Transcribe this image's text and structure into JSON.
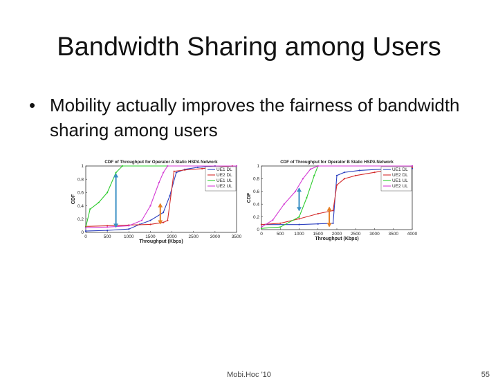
{
  "slide": {
    "title": "Bandwidth Sharing among Users",
    "bullet_symbol": "•",
    "bullet": "Mobility actually improves the fairness of bandwidth sharing among users",
    "footer_center": "Mobi.Hoc '10",
    "page_number": "55"
  },
  "chart_data": [
    {
      "type": "line",
      "title": "CDF of Throughput for Operator A Static HSPA Network",
      "xlabel": "Throughput (Kbps)",
      "ylabel": "CDF",
      "xlim": [
        0,
        3500
      ],
      "ylim": [
        0,
        1
      ],
      "x_ticks": [
        "0",
        "500",
        "1000",
        "1500",
        "2000",
        "2500",
        "3000",
        "3500"
      ],
      "y_ticks": [
        "0",
        "0.2",
        "0.4",
        "0.6",
        "0.8",
        "1"
      ],
      "legend_position": "top-right",
      "series": [
        {
          "name": "UE1 DL",
          "color": "#2b3fbf",
          "points": [
            [
              0,
              0.02
            ],
            [
              500,
              0.03
            ],
            [
              1000,
              0.05
            ],
            [
              1250,
              0.12
            ],
            [
              1500,
              0.18
            ],
            [
              1800,
              0.3
            ],
            [
              1950,
              0.55
            ],
            [
              2100,
              0.9
            ],
            [
              2300,
              0.95
            ],
            [
              2600,
              0.98
            ],
            [
              3000,
              1.0
            ]
          ]
        },
        {
          "name": "UE2 DL",
          "color": "#d42a2a",
          "points": [
            [
              0,
              0.09
            ],
            [
              500,
              0.1
            ],
            [
              1000,
              0.11
            ],
            [
              1500,
              0.12
            ],
            [
              1800,
              0.15
            ],
            [
              1900,
              0.18
            ],
            [
              2050,
              0.92
            ],
            [
              2300,
              0.94
            ],
            [
              2700,
              0.96
            ],
            [
              3000,
              0.98
            ],
            [
              3400,
              1.0
            ]
          ]
        },
        {
          "name": "UE1 UL",
          "color": "#2ecc2e",
          "points": [
            [
              0,
              0.08
            ],
            [
              100,
              0.35
            ],
            [
              300,
              0.45
            ],
            [
              500,
              0.6
            ],
            [
              700,
              0.9
            ],
            [
              850,
              1.0
            ],
            [
              3500,
              1.0
            ]
          ]
        },
        {
          "name": "UE2 UL",
          "color": "#d43ad4",
          "points": [
            [
              0,
              0.07
            ],
            [
              500,
              0.08
            ],
            [
              1000,
              0.1
            ],
            [
              1300,
              0.18
            ],
            [
              1500,
              0.4
            ],
            [
              1700,
              0.75
            ],
            [
              1800,
              0.9
            ],
            [
              1900,
              1.0
            ],
            [
              3500,
              1.0
            ]
          ]
        }
      ],
      "annotations": [
        {
          "type": "double-arrow",
          "color": "#3a8fc4",
          "x": 700,
          "y_from": 0.08,
          "y_to": 0.88
        },
        {
          "type": "double-arrow",
          "color": "#e67e22",
          "x": 1730,
          "y_from": 0.13,
          "y_to": 0.43
        }
      ]
    },
    {
      "type": "line",
      "title": "CDF of Throughput for Operator B Static HSPA Network",
      "xlabel": "Throughput (Kbps)",
      "ylabel": "CDF",
      "xlim": [
        0,
        4000
      ],
      "ylim": [
        0,
        1
      ],
      "x_ticks": [
        "0",
        "500",
        "1000",
        "1500",
        "2000",
        "2500",
        "3000",
        "3500",
        "4000"
      ],
      "y_ticks": [
        "0",
        "0.2",
        "0.4",
        "0.6",
        "0.8",
        "1"
      ],
      "legend_position": "top-right",
      "series": [
        {
          "name": "UE1 DL",
          "color": "#2b3fbf",
          "points": [
            [
              0,
              0.08
            ],
            [
              1000,
              0.08
            ],
            [
              1500,
              0.09
            ],
            [
              1900,
              0.1
            ],
            [
              2000,
              0.85
            ],
            [
              2200,
              0.9
            ],
            [
              2600,
              0.93
            ],
            [
              3200,
              0.95
            ],
            [
              4000,
              0.96
            ]
          ]
        },
        {
          "name": "UE2 DL",
          "color": "#d42a2a",
          "points": [
            [
              0,
              0.08
            ],
            [
              500,
              0.1
            ],
            [
              1000,
              0.17
            ],
            [
              1500,
              0.25
            ],
            [
              1900,
              0.3
            ],
            [
              2000,
              0.7
            ],
            [
              2200,
              0.8
            ],
            [
              2500,
              0.85
            ],
            [
              3000,
              0.9
            ],
            [
              3500,
              0.95
            ],
            [
              4000,
              0.98
            ]
          ]
        },
        {
          "name": "UE1 UL",
          "color": "#2ecc2e",
          "points": [
            [
              0,
              0.02
            ],
            [
              500,
              0.04
            ],
            [
              1000,
              0.2
            ],
            [
              1200,
              0.5
            ],
            [
              1400,
              0.85
            ],
            [
              1500,
              1.0
            ],
            [
              4000,
              1.0
            ]
          ]
        },
        {
          "name": "UE2 UL",
          "color": "#d43ad4",
          "points": [
            [
              0,
              0.04
            ],
            [
              300,
              0.15
            ],
            [
              600,
              0.4
            ],
            [
              900,
              0.6
            ],
            [
              1100,
              0.8
            ],
            [
              1300,
              0.95
            ],
            [
              1500,
              1.0
            ],
            [
              4000,
              1.0
            ]
          ]
        }
      ],
      "annotations": [
        {
          "type": "double-arrow",
          "color": "#3a8fc4",
          "x": 1000,
          "y_from": 0.3,
          "y_to": 0.65
        },
        {
          "type": "double-arrow",
          "color": "#e67e22",
          "x": 1800,
          "y_from": 0.05,
          "y_to": 0.35
        }
      ]
    }
  ]
}
